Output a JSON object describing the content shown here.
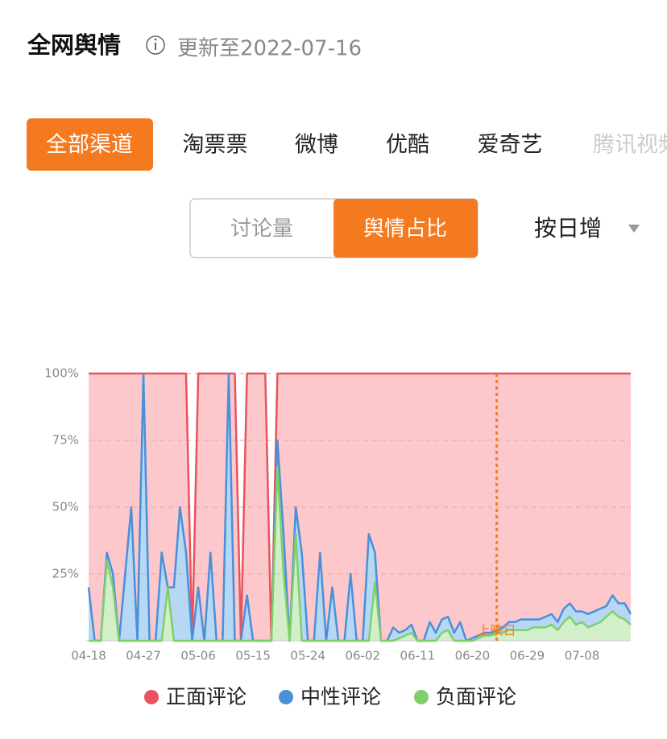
{
  "header": {
    "title": "全网舆情",
    "updated": "更新至2022-07-16"
  },
  "channels": {
    "items": [
      "全部渠道",
      "淘票票",
      "微博",
      "优酷",
      "爱奇艺",
      "腾讯视频"
    ],
    "active": 0
  },
  "toggle": {
    "options": [
      "讨论量",
      "舆情占比"
    ],
    "active": 1
  },
  "period": "按日增",
  "chart_data": {
    "type": "stacked_area",
    "categories": [
      "04-18",
      null,
      null,
      null,
      null,
      null,
      null,
      null,
      null,
      "04-27",
      null,
      null,
      null,
      null,
      null,
      null,
      null,
      null,
      "05-06",
      null,
      null,
      null,
      null,
      null,
      null,
      null,
      null,
      "05-15",
      null,
      null,
      null,
      null,
      null,
      null,
      null,
      null,
      "05-24",
      null,
      null,
      null,
      null,
      null,
      null,
      null,
      null,
      "06-02",
      null,
      null,
      null,
      null,
      null,
      null,
      null,
      null,
      "06-11",
      null,
      null,
      null,
      null,
      null,
      null,
      null,
      null,
      "06-20",
      null,
      null,
      null,
      null,
      null,
      null,
      null,
      null,
      "06-29",
      null,
      null,
      null,
      null,
      null,
      null,
      null,
      null,
      "07-08",
      null,
      null,
      null,
      null,
      null,
      null,
      null,
      null
    ],
    "series": [
      {
        "name": "正面评论",
        "color": "#e8545e",
        "fill": "#fcc8cb",
        "values": [
          80,
          100,
          100,
          67,
          75,
          100,
          75,
          50,
          100,
          0,
          100,
          100,
          67,
          80,
          80,
          50,
          67,
          0,
          80,
          100,
          67,
          100,
          100,
          0,
          100,
          0,
          83,
          100,
          100,
          100,
          0,
          25,
          60,
          100,
          50,
          67,
          100,
          100,
          67,
          100,
          80,
          100,
          100,
          75,
          100,
          100,
          60,
          67,
          100,
          100,
          95,
          97,
          96,
          94,
          100,
          100,
          93,
          97,
          92,
          91,
          97,
          93,
          100,
          99,
          98,
          97,
          97,
          96,
          95,
          93,
          93,
          92,
          92,
          92,
          92,
          91,
          90,
          93,
          88,
          86,
          89,
          89,
          90,
          89,
          88,
          87,
          83,
          86,
          86,
          90
        ]
      },
      {
        "name": "中性评论",
        "color": "#4a90d9",
        "fill": "#b6d8f4",
        "values": [
          20,
          0,
          0,
          3,
          5,
          0,
          25,
          50,
          0,
          100,
          0,
          0,
          33,
          0,
          20,
          50,
          33,
          0,
          20,
          0,
          33,
          0,
          0,
          100,
          0,
          0,
          17,
          0,
          0,
          0,
          0,
          10,
          15,
          0,
          10,
          33,
          0,
          0,
          33,
          0,
          20,
          0,
          0,
          25,
          0,
          0,
          40,
          11,
          0,
          0,
          5,
          2,
          2,
          3,
          0,
          0,
          7,
          3,
          5,
          5,
          3,
          7,
          0,
          1,
          1,
          1,
          1,
          1,
          2,
          3,
          3,
          4,
          4,
          3,
          3,
          4,
          4,
          3,
          5,
          5,
          5,
          4,
          5,
          5,
          5,
          4,
          6,
          5,
          6,
          4
        ]
      },
      {
        "name": "负面评论",
        "color": "#7fcf6b",
        "fill": "#d3efc9",
        "values": [
          0,
          0,
          0,
          30,
          20,
          0,
          0,
          0,
          0,
          0,
          0,
          0,
          0,
          20,
          0,
          0,
          0,
          0,
          0,
          0,
          0,
          0,
          0,
          0,
          0,
          0,
          0,
          0,
          0,
          0,
          0,
          65,
          25,
          0,
          40,
          0,
          0,
          0,
          0,
          0,
          0,
          0,
          0,
          0,
          0,
          0,
          0,
          22,
          0,
          0,
          0,
          1,
          2,
          3,
          0,
          0,
          0,
          0,
          3,
          4,
          0,
          0,
          0,
          0,
          1,
          2,
          2,
          3,
          3,
          4,
          4,
          4,
          4,
          5,
          5,
          5,
          6,
          4,
          7,
          9,
          6,
          7,
          5,
          6,
          7,
          9,
          11,
          9,
          8,
          6
        ]
      }
    ],
    "ylim": [
      0,
      100
    ],
    "yticks": [
      {
        "value": 25,
        "label": "25%"
      },
      {
        "value": 50,
        "label": "50%"
      },
      {
        "value": 75,
        "label": "75%"
      },
      {
        "value": 100,
        "label": "100%"
      }
    ],
    "grid": true,
    "annotation": {
      "label": "上映日",
      "index": 67,
      "color": "#f07f1f"
    }
  }
}
